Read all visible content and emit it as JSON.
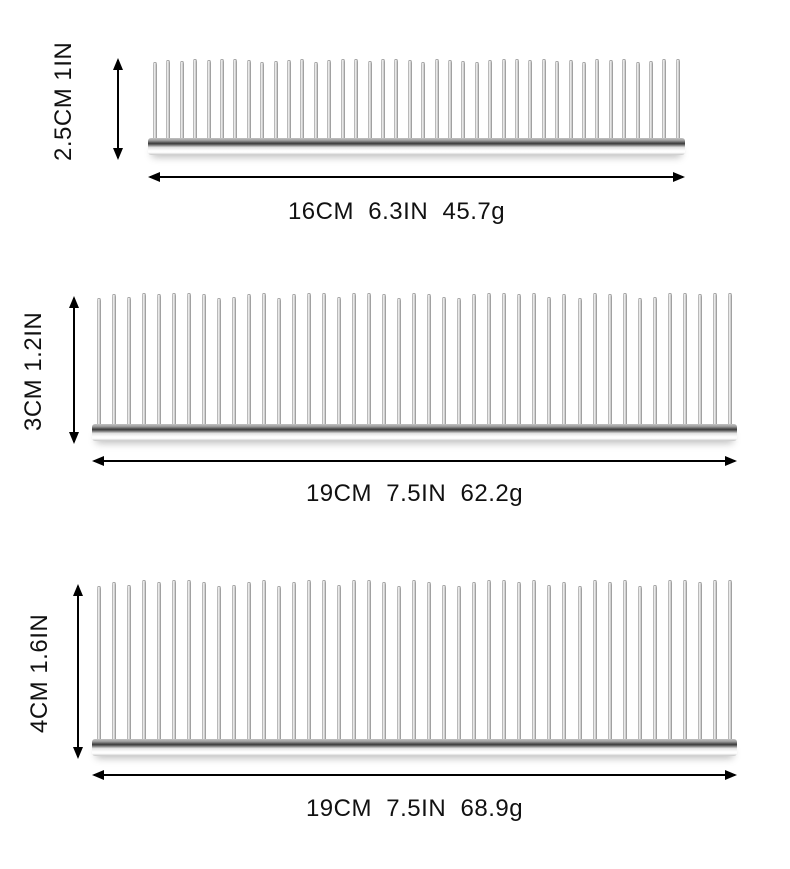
{
  "combs": [
    {
      "height_label": "2.5CM 1IN",
      "size_label": "16CM  6.3IN  45.7g",
      "teeth_count": 40
    },
    {
      "height_label": "3CM 1.2IN",
      "size_label": "19CM  7.5IN  62.2g",
      "teeth_count": 43
    },
    {
      "height_label": "4CM 1.6IN",
      "size_label": "19CM  7.5IN  68.9g",
      "teeth_count": 43
    }
  ],
  "colors": {
    "background": "#ffffff",
    "text": "#111111",
    "dimension_line": "#000000",
    "metal_light": "#f5f5f5",
    "metal_mid": "#b9b9b9",
    "metal_dark": "#3a3a3a"
  }
}
